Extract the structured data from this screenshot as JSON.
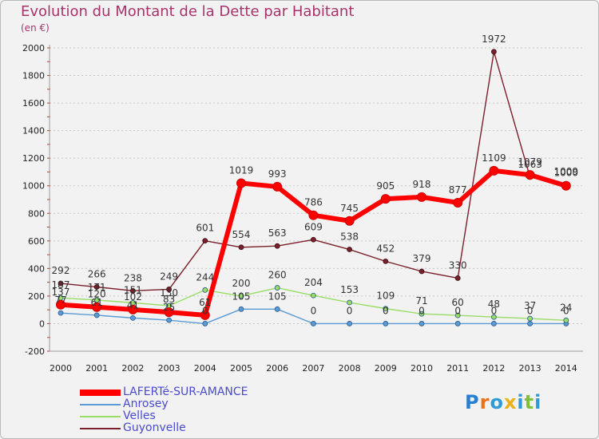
{
  "title": "Evolution du Montant de la Dette par Habitant",
  "subtitle": "(en €)",
  "chart_data": {
    "type": "line",
    "title": "Evolution du Montant de la Dette par Habitant",
    "subtitle": "(en €)",
    "x": [
      "2000",
      "2001",
      "2002",
      "2003",
      "2004",
      "2005",
      "2006",
      "2007",
      "2008",
      "2009",
      "2010",
      "2011",
      "2012",
      "2013",
      "2014"
    ],
    "ylim": [
      -200,
      2000
    ],
    "yticks": [
      -200,
      0,
      200,
      400,
      600,
      800,
      1000,
      1200,
      1400,
      1600,
      1800,
      2000
    ],
    "grid": "horizontal dotted",
    "legend_position": "bottom-left",
    "series": [
      {
        "name": "LAFERTé-SUR-AMANCE",
        "color": "#ff0000",
        "values": [
          137,
          120,
          102,
          83,
          61,
          1019,
          993,
          786,
          745,
          905,
          918,
          877,
          1109,
          1079,
          1000
        ],
        "labels": [
          "137",
          "120",
          "102",
          "83",
          "61",
          "1019",
          "993",
          "786",
          "745",
          "905",
          "918",
          "877",
          "1109",
          "1079",
          "1000"
        ]
      },
      {
        "name": "Anrosey",
        "color": "#5b9bd5",
        "values": [
          77,
          61,
          41,
          25,
          0,
          105,
          105,
          0,
          0,
          0,
          0,
          0,
          0,
          0,
          0
        ],
        "labels": [
          "77",
          "61",
          "41",
          "25",
          "0",
          "105",
          "105",
          "0",
          "0",
          "0",
          "0",
          "0",
          "0",
          "0",
          "0"
        ]
      },
      {
        "name": "Velles",
        "color": "#99dd66",
        "values": [
          187,
          171,
          151,
          130,
          244,
          200,
          260,
          204,
          153,
          109,
          71,
          60,
          48,
          37,
          24
        ],
        "labels": [
          "187",
          "171",
          "151",
          "130",
          "244",
          "200",
          "260",
          "204",
          "153",
          "109",
          "71",
          "60",
          "48",
          "37",
          "24"
        ]
      },
      {
        "name": "Guyonvelle",
        "color": "#7a1f2b",
        "values": [
          292,
          266,
          238,
          249,
          601,
          554,
          563,
          609,
          538,
          452,
          379,
          330,
          1972,
          1063,
          1009
        ],
        "labels": [
          "292",
          "266",
          "238",
          "249",
          "601",
          "554",
          "563",
          "609",
          "538",
          "452",
          "379",
          "330",
          "1972",
          "1063",
          "1009"
        ]
      }
    ]
  },
  "legend": [
    {
      "label": "LAFERTé-SUR-AMANCE",
      "color": "#ff0000"
    },
    {
      "label": "Anrosey",
      "color": "#5b9bd5"
    },
    {
      "label": "Velles",
      "color": "#99dd66"
    },
    {
      "label": "Guyonvelle",
      "color": "#7a1f2b"
    }
  ],
  "logo": {
    "letters": [
      "P",
      "r",
      "o",
      "x",
      "i",
      "t",
      "i"
    ],
    "colors": [
      "#2b7fd0",
      "#e8731c",
      "#2e9bd6",
      "#e8b219",
      "#2e9bd6",
      "#7fbf3a",
      "#2e9bd6"
    ]
  }
}
